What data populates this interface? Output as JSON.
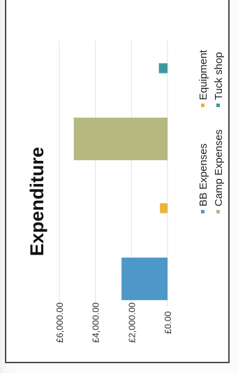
{
  "chart_data": {
    "type": "bar",
    "title": "Expenditure",
    "xlabel": "",
    "ylabel": "",
    "ylim": [
      0,
      6000
    ],
    "yticks": [
      "£6,000.00",
      "£4,000.00",
      "£2,000.00",
      "£0.00"
    ],
    "yticks_values": [
      6000,
      4000,
      2000,
      0
    ],
    "categories": [
      "BB Expenses",
      "Equipment",
      "Camp Expenses",
      "Tuck shop"
    ],
    "values": [
      2550,
      420,
      5200,
      480
    ],
    "colors": [
      "#4e98c9",
      "#ecb23a",
      "#b5b980",
      "#3b9aa0"
    ],
    "legend": {
      "placement": "bottom",
      "entries": [
        "BB Expenses",
        "Equipment",
        "Camp Expenses",
        "Tuck shop"
      ]
    },
    "grid": true,
    "orientation": "rotated-90-ccw"
  }
}
